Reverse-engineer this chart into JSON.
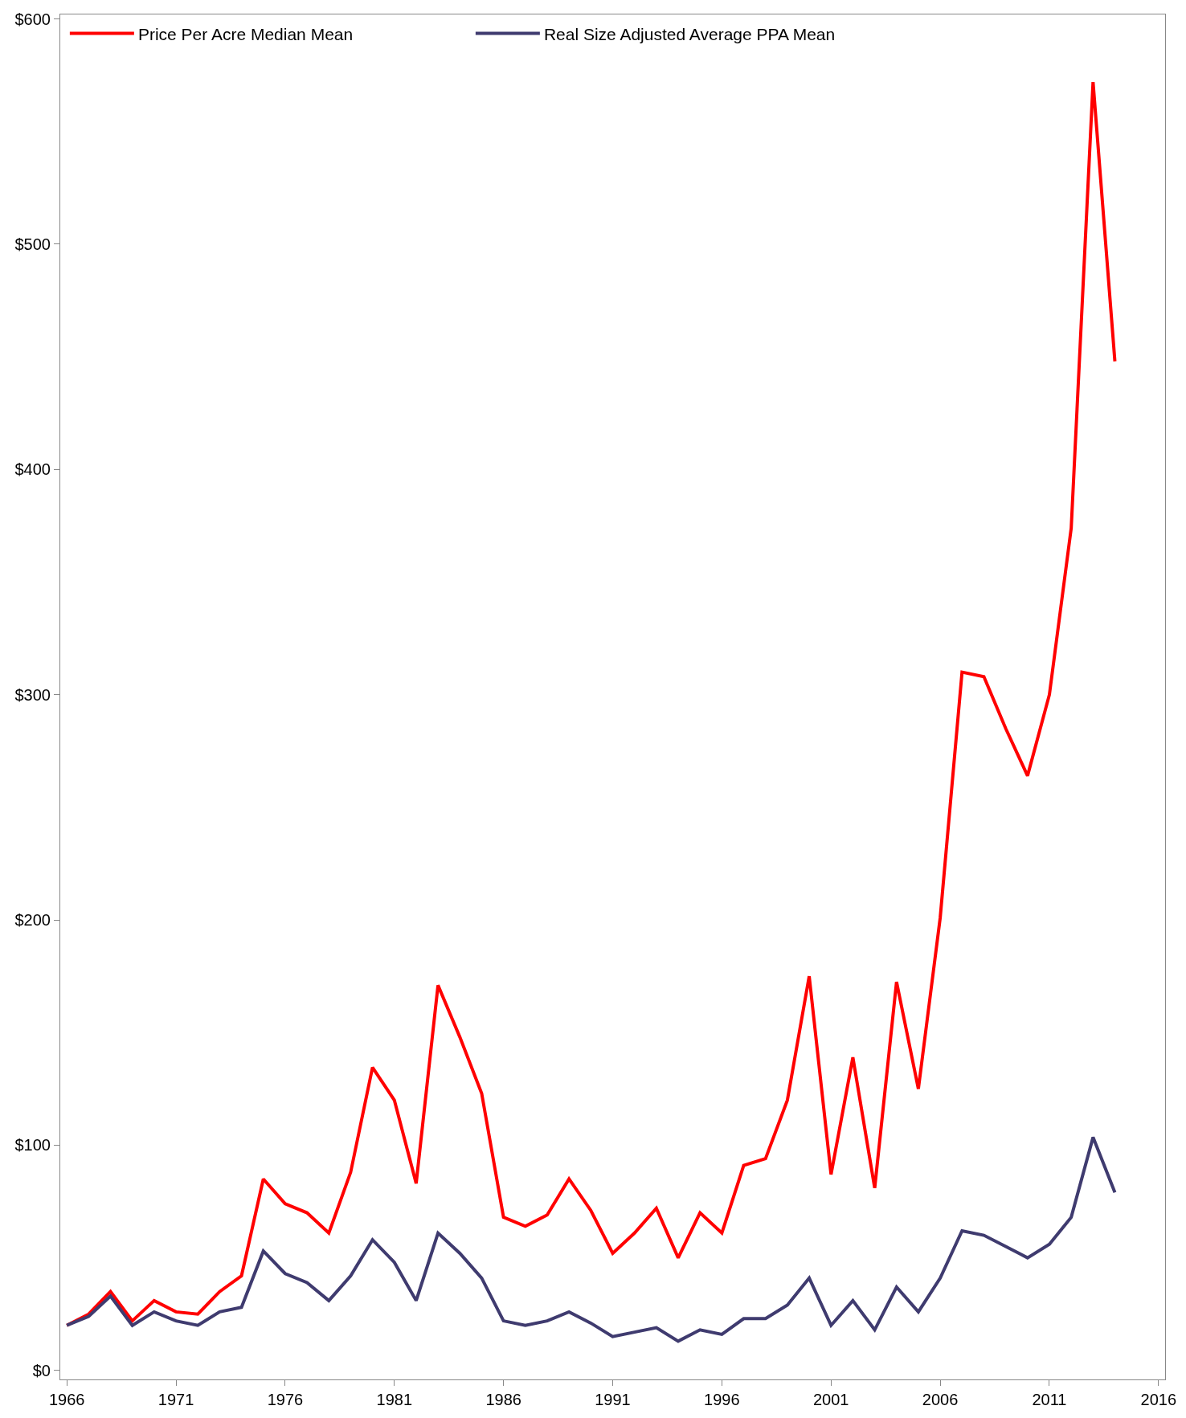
{
  "chart_data": {
    "type": "line",
    "x": [
      1966,
      1967,
      1968,
      1969,
      1970,
      1971,
      1972,
      1973,
      1974,
      1975,
      1976,
      1977,
      1978,
      1979,
      1980,
      1981,
      1982,
      1983,
      1984,
      1985,
      1986,
      1987,
      1988,
      1989,
      1990,
      1991,
      1992,
      1993,
      1994,
      1995,
      1996,
      1997,
      1998,
      1999,
      2000,
      2001,
      2002,
      2003,
      2004,
      2005,
      2006,
      2007,
      2008,
      2009,
      2010,
      2011,
      2012,
      2013,
      2014
    ],
    "series": [
      {
        "name": "Price Per Acre Median Mean",
        "color": "#ff0000",
        "values": [
          20,
          25,
          35,
          22,
          31,
          26,
          25,
          35,
          42,
          85,
          74,
          70,
          61,
          88,
          134.5,
          120,
          83,
          171,
          148,
          123,
          68,
          64,
          69,
          85,
          71,
          52,
          61,
          72,
          50,
          70,
          61,
          91,
          94,
          120,
          175,
          87,
          139,
          81,
          172.5,
          125,
          201,
          310,
          308,
          285,
          264,
          300,
          374,
          572,
          448
        ]
      },
      {
        "name": "Real Size Adjusted Average PPA Mean",
        "color": "#3f3b6f",
        "values": [
          20,
          24,
          33,
          20,
          26,
          22,
          20,
          26,
          28,
          53,
          43,
          39,
          31,
          42,
          58,
          48,
          31,
          61,
          52,
          41,
          22,
          20,
          22,
          26,
          21,
          15,
          17,
          19,
          13,
          18,
          16,
          23,
          23,
          29,
          41,
          20,
          31,
          18,
          37,
          26,
          41,
          62,
          60,
          55,
          50,
          56,
          68,
          103.5,
          79
        ]
      }
    ],
    "xlim": [
      1965.7,
      2016.3
    ],
    "ylim": [
      -4,
      602
    ],
    "xticks": [
      1966,
      1971,
      1976,
      1981,
      1986,
      1991,
      1996,
      2001,
      2006,
      2011,
      2016
    ],
    "yticks": [
      {
        "value": 0,
        "label": "$0"
      },
      {
        "value": 100,
        "label": "$100"
      },
      {
        "value": 200,
        "label": "$200"
      },
      {
        "value": 300,
        "label": "$300"
      },
      {
        "value": 400,
        "label": "$400"
      },
      {
        "value": 500,
        "label": "$500"
      },
      {
        "value": 600,
        "label": "$600"
      }
    ],
    "legend": "top left",
    "marker": "none",
    "line_style": "solid"
  }
}
